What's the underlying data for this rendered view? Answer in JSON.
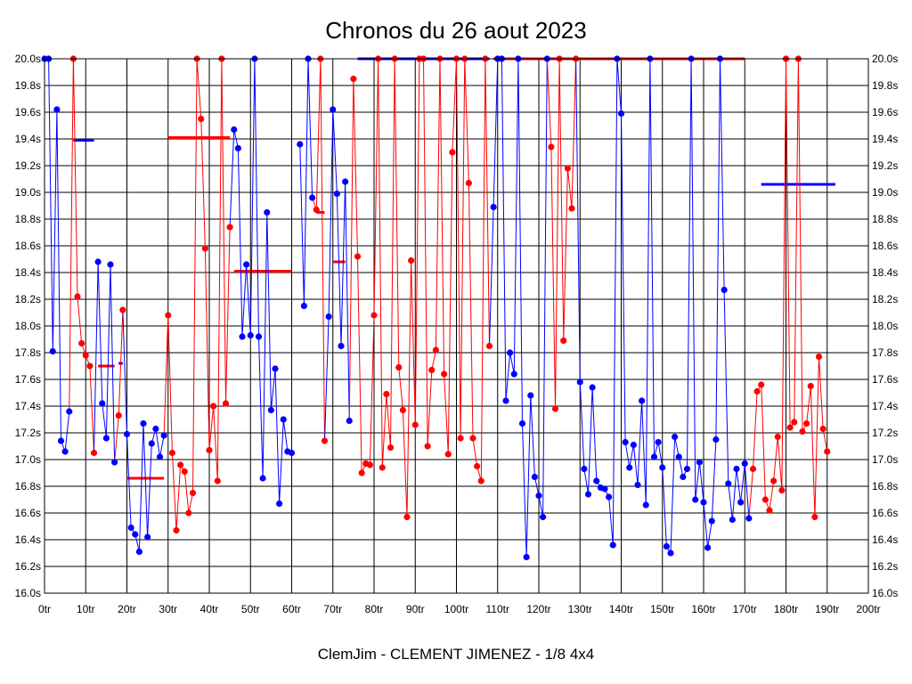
{
  "chart_data": {
    "type": "line",
    "title": "Chronos du 26 aout 2023",
    "footer": "ClemJim - CLEMENT JIMENEZ - 1/8 4x4",
    "x_unit": "tr",
    "y_unit": "s",
    "xlim": [
      0,
      200
    ],
    "ylim": [
      16.0,
      20.0
    ],
    "x_ticks": [
      0,
      10,
      20,
      30,
      40,
      50,
      60,
      70,
      80,
      90,
      100,
      110,
      120,
      130,
      140,
      150,
      160,
      170,
      180,
      190,
      200
    ],
    "y_ticks": [
      16.0,
      16.2,
      16.4,
      16.6,
      16.8,
      17.0,
      17.2,
      17.4,
      17.6,
      17.8,
      18.0,
      18.2,
      18.4,
      18.6,
      18.8,
      19.0,
      19.2,
      19.4,
      19.6,
      19.8,
      20.0
    ],
    "x_tick_labels": [
      "0tr",
      "10tr",
      "20tr",
      "30tr",
      "40tr",
      "50tr",
      "60tr",
      "70tr",
      "80tr",
      "90tr",
      "100tr",
      "110tr",
      "120tr",
      "130tr",
      "140tr",
      "150tr",
      "160tr",
      "170tr",
      "180tr",
      "190tr",
      "200tr"
    ],
    "y_tick_labels": [
      "16.0s",
      "16.2s",
      "16.4s",
      "16.6s",
      "16.8s",
      "17.0s",
      "17.2s",
      "17.4s",
      "17.6s",
      "17.8s",
      "18.0s",
      "18.2s",
      "18.4s",
      "18.6s",
      "18.8s",
      "19.0s",
      "19.2s",
      "19.4s",
      "19.6s",
      "19.8s",
      "20.0s"
    ],
    "grid": true,
    "colors": {
      "blue": "#0000ff",
      "red": "#ff0000",
      "grid": "#000000"
    },
    "segments": [
      {
        "series": "blue",
        "points": [
          [
            0,
            20.0
          ],
          [
            1,
            20.0
          ],
          [
            2,
            17.81
          ],
          [
            3,
            19.62
          ],
          [
            4,
            17.14
          ],
          [
            5,
            17.06
          ],
          [
            6,
            17.36
          ]
        ],
        "mean": 19.39,
        "mean_range": [
          7,
          12
        ]
      },
      {
        "series": "red",
        "points": [
          [
            7,
            20.0
          ],
          [
            8,
            18.22
          ],
          [
            9,
            17.87
          ],
          [
            10,
            17.78
          ],
          [
            11,
            17.7
          ],
          [
            12,
            17.05
          ]
        ],
        "mean": 17.7,
        "mean_range": [
          13,
          17
        ]
      },
      {
        "series": "blue",
        "points": [
          [
            13,
            18.48
          ],
          [
            14,
            17.42
          ],
          [
            15,
            17.16
          ],
          [
            16,
            18.46
          ],
          [
            17,
            16.98
          ]
        ],
        "mean": 17.72,
        "mean_range": [
          18,
          19
        ]
      },
      {
        "series": "red",
        "points": [
          [
            18,
            17.33
          ],
          [
            19,
            18.12
          ]
        ],
        "mean": 16.86,
        "mean_range": [
          20,
          29
        ]
      },
      {
        "series": "blue",
        "points": [
          [
            20,
            17.19
          ],
          [
            21,
            16.49
          ],
          [
            22,
            16.44
          ],
          [
            23,
            16.31
          ],
          [
            24,
            17.27
          ],
          [
            25,
            16.42
          ],
          [
            26,
            17.12
          ],
          [
            27,
            17.23
          ],
          [
            28,
            17.02
          ],
          [
            29,
            17.18
          ]
        ]
      },
      {
        "series": "red",
        "points": [
          [
            30,
            18.08
          ],
          [
            31,
            17.05
          ],
          [
            32,
            16.47
          ],
          [
            33,
            16.96
          ],
          [
            34,
            16.91
          ],
          [
            35,
            16.6
          ],
          [
            36,
            16.75
          ],
          [
            37,
            20.0
          ],
          [
            38,
            19.55
          ],
          [
            39,
            18.58
          ],
          [
            40,
            17.07
          ],
          [
            41,
            17.4
          ],
          [
            42,
            16.84
          ],
          [
            43,
            20.0
          ],
          [
            44,
            17.42
          ],
          [
            45,
            18.74
          ]
        ],
        "mean": 19.41,
        "mean_range": [
          30,
          45
        ]
      },
      {
        "series": "blue",
        "points": [
          [
            46,
            19.47
          ],
          [
            47,
            19.33
          ],
          [
            48,
            17.92
          ],
          [
            49,
            18.46
          ],
          [
            50,
            17.93
          ],
          [
            51,
            20.0
          ],
          [
            52,
            17.92
          ],
          [
            53,
            16.86
          ],
          [
            54,
            18.85
          ],
          [
            55,
            17.37
          ],
          [
            56,
            17.68
          ],
          [
            57,
            16.67
          ],
          [
            58,
            17.3
          ],
          [
            59,
            17.06
          ],
          [
            60,
            17.05
          ]
        ]
      },
      {
        "series": "red",
        "points": [],
        "mean": 18.41,
        "mean_range": [
          46,
          60
        ]
      },
      {
        "series": "blue",
        "points": [
          [
            62,
            19.36
          ],
          [
            63,
            18.15
          ],
          [
            64,
            20.0
          ],
          [
            65,
            18.96
          ]
        ]
      },
      {
        "series": "red",
        "points": [
          [
            66,
            18.87
          ],
          [
            67,
            20.0
          ],
          [
            68,
            17.14
          ]
        ],
        "mean": 18.85,
        "mean_range": [
          66,
          68
        ]
      },
      {
        "series": "blue",
        "points": [
          [
            69,
            18.07
          ],
          [
            70,
            19.62
          ],
          [
            71,
            18.99
          ],
          [
            72,
            17.85
          ],
          [
            73,
            19.08
          ],
          [
            74,
            17.29
          ]
        ]
      },
      {
        "series": "red",
        "points": [
          [
            75,
            19.85
          ],
          [
            76,
            18.52
          ],
          [
            77,
            16.9
          ],
          [
            78,
            16.97
          ],
          [
            79,
            16.96
          ],
          [
            80,
            18.08
          ],
          [
            81,
            20.0
          ],
          [
            82,
            16.94
          ],
          [
            83,
            17.49
          ],
          [
            84,
            17.09
          ],
          [
            85,
            20.0
          ],
          [
            86,
            17.69
          ],
          [
            87,
            17.37
          ],
          [
            88,
            16.57
          ],
          [
            89,
            18.49
          ],
          [
            90,
            17.26
          ],
          [
            91,
            20.0
          ],
          [
            92,
            20.0
          ],
          [
            93,
            17.1
          ],
          [
            94,
            17.67
          ],
          [
            95,
            17.82
          ],
          [
            96,
            20.0
          ],
          [
            97,
            17.64
          ],
          [
            98,
            17.04
          ],
          [
            99,
            19.3
          ],
          [
            100,
            20.0
          ],
          [
            101,
            17.16
          ],
          [
            102,
            20.0
          ],
          [
            103,
            19.07
          ],
          [
            104,
            17.16
          ],
          [
            105,
            16.95
          ],
          [
            106,
            16.84
          ],
          [
            107,
            20.0
          ],
          [
            108,
            17.85
          ]
        ],
        "mean": 18.48,
        "mean_range": [
          70,
          73
        ]
      },
      {
        "series": "blue",
        "points": [
          [
            109,
            18.89
          ],
          [
            110,
            20.0
          ],
          [
            111,
            20.0
          ],
          [
            112,
            17.44
          ],
          [
            113,
            17.8
          ],
          [
            114,
            17.64
          ],
          [
            115,
            20.0
          ],
          [
            116,
            17.27
          ],
          [
            117,
            16.27
          ],
          [
            118,
            17.48
          ],
          [
            119,
            16.87
          ],
          [
            120,
            16.73
          ],
          [
            121,
            16.57
          ],
          [
            122,
            20.0
          ]
        ],
        "mean": 20.0,
        "mean_range": [
          76,
          108
        ]
      },
      {
        "series": "red",
        "points": [
          [
            123,
            19.34
          ],
          [
            124,
            17.38
          ],
          [
            125,
            20.0
          ],
          [
            126,
            17.89
          ],
          [
            127,
            19.18
          ],
          [
            128,
            18.88
          ],
          [
            129,
            20.0
          ]
        ],
        "mean": 20.0,
        "mean_range": [
          109,
          170
        ]
      },
      {
        "series": "blue",
        "points": [
          [
            130,
            17.58
          ],
          [
            131,
            16.93
          ],
          [
            132,
            16.74
          ],
          [
            133,
            17.54
          ],
          [
            134,
            16.84
          ],
          [
            135,
            16.79
          ],
          [
            136,
            16.78
          ],
          [
            137,
            16.72
          ],
          [
            138,
            16.36
          ],
          [
            139,
            20.0
          ],
          [
            140,
            19.59
          ],
          [
            141,
            17.13
          ],
          [
            142,
            16.94
          ],
          [
            143,
            17.11
          ],
          [
            144,
            16.81
          ],
          [
            145,
            17.44
          ],
          [
            146,
            16.66
          ],
          [
            147,
            20.0
          ],
          [
            148,
            17.02
          ],
          [
            149,
            17.13
          ],
          [
            150,
            16.94
          ],
          [
            151,
            16.35
          ],
          [
            152,
            16.3
          ],
          [
            153,
            17.17
          ],
          [
            154,
            17.02
          ],
          [
            155,
            16.87
          ],
          [
            156,
            16.93
          ],
          [
            157,
            20.0
          ],
          [
            158,
            16.7
          ],
          [
            159,
            16.98
          ],
          [
            160,
            16.68
          ],
          [
            161,
            16.34
          ],
          [
            162,
            16.54
          ],
          [
            163,
            17.15
          ],
          [
            164,
            20.0
          ],
          [
            165,
            18.27
          ],
          [
            166,
            16.82
          ],
          [
            167,
            16.55
          ],
          [
            168,
            16.93
          ],
          [
            169,
            16.68
          ],
          [
            170,
            16.97
          ],
          [
            171,
            16.56
          ]
        ],
        "mean": 19.06,
        "mean_range": [
          174,
          192
        ]
      },
      {
        "series": "red",
        "points": [
          [
            172,
            16.93
          ],
          [
            173,
            17.51
          ],
          [
            174,
            17.56
          ],
          [
            175,
            16.7
          ],
          [
            176,
            16.62
          ],
          [
            177,
            16.84
          ],
          [
            178,
            17.17
          ],
          [
            179,
            16.77
          ],
          [
            180,
            20.0
          ],
          [
            181,
            17.24
          ],
          [
            182,
            17.28
          ],
          [
            183,
            20.0
          ],
          [
            184,
            17.21
          ],
          [
            185,
            17.27
          ],
          [
            186,
            17.55
          ],
          [
            187,
            16.57
          ],
          [
            188,
            17.77
          ],
          [
            189,
            17.23
          ],
          [
            190,
            17.06
          ]
        ]
      }
    ]
  }
}
